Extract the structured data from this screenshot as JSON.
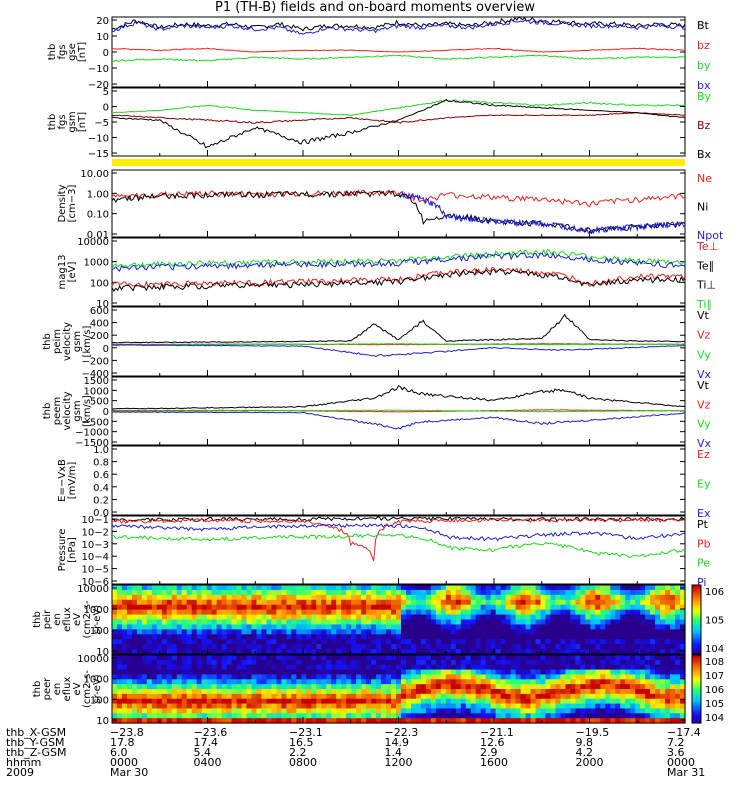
{
  "title": "P1 (TH-B) fields and on-board moments overview",
  "colors": {
    "black": "#000000",
    "red": "#e8231e",
    "green": "#1fd61f",
    "blue": "#1f1fd8",
    "yellow": "#ffee00",
    "brown": "#8a0000"
  },
  "chart_data": [
    {
      "type": "line",
      "ylabel": [
        "thb",
        "fgs",
        "gse",
        "[nT]"
      ],
      "ylim": [
        -20,
        20
      ],
      "yticks": [
        "20",
        "10",
        "0",
        "−10",
        "−20"
      ],
      "yscale": "linear",
      "legend": [
        {
          "label": "Bt",
          "color": "#000000"
        },
        {
          "label": "bz",
          "color": "#e8231e"
        },
        {
          "label": "by",
          "color": "#1fd61f"
        },
        {
          "label": "bx",
          "color": "#1f1fd8"
        }
      ],
      "series": [
        {
          "name": "Bt",
          "color": "#000000",
          "x": [
            0,
            1,
            2,
            3,
            4,
            5,
            6,
            7,
            8,
            9,
            10,
            11,
            12,
            13,
            14,
            15,
            16,
            17,
            18,
            19,
            20,
            21,
            22,
            23,
            24
          ],
          "y": [
            13,
            18,
            14,
            16,
            15,
            16,
            14,
            16,
            13,
            15,
            15,
            14,
            17,
            15,
            16,
            15,
            17,
            19,
            18,
            17,
            16,
            16,
            15,
            16,
            15
          ]
        },
        {
          "name": "bz",
          "color": "#e8231e",
          "x": [
            0,
            2,
            4,
            6,
            8,
            10,
            12,
            14,
            16,
            18,
            20,
            22,
            24
          ],
          "y": [
            2,
            1,
            2,
            0,
            1,
            1,
            0,
            1,
            2,
            0,
            1,
            2,
            1
          ]
        },
        {
          "name": "by",
          "color": "#1fd61f",
          "x": [
            0,
            2,
            4,
            6,
            8,
            10,
            12,
            14,
            16,
            18,
            20,
            22,
            24
          ],
          "y": [
            -5,
            -4,
            -5,
            -3,
            -4,
            -3,
            -2,
            -4,
            -3,
            -2,
            -4,
            -3,
            -3
          ]
        },
        {
          "name": "bx",
          "color": "#1f1fd8",
          "x": [
            0,
            1,
            2,
            3,
            4,
            5,
            6,
            7,
            8,
            9,
            10,
            11,
            12,
            13,
            14,
            15,
            16,
            17,
            18,
            19,
            20,
            21,
            22,
            23,
            24
          ],
          "y": [
            12,
            17,
            13,
            15,
            14,
            15,
            13,
            14,
            10,
            14,
            13,
            12,
            15,
            14,
            15,
            14,
            16,
            18,
            17,
            16,
            15,
            15,
            14,
            15,
            14
          ]
        }
      ]
    },
    {
      "type": "line",
      "ylabel": [
        "thb",
        "fgs",
        "gsm",
        "[nT]"
      ],
      "ylim": [
        -17.5,
        10
      ],
      "yticks": [
        "5",
        "0",
        "−5",
        "−10",
        "−15"
      ],
      "yscale": "linear",
      "legend": [
        {
          "label": "By",
          "color": "#1fd61f"
        },
        {
          "label": "Bz",
          "color": "#8a0000"
        },
        {
          "label": "Bx",
          "color": "#000000"
        }
      ],
      "series": [
        {
          "name": "By",
          "color": "#1fd61f",
          "x": [
            0,
            2,
            4,
            6,
            8,
            10,
            12,
            14,
            16,
            18,
            20,
            22,
            24
          ],
          "y": [
            0,
            1,
            3,
            1,
            0,
            -1,
            2,
            5,
            4,
            3,
            4,
            3,
            3
          ]
        },
        {
          "name": "Bz",
          "color": "#8a0000",
          "x": [
            0,
            2,
            4,
            6,
            8,
            10,
            12,
            14,
            16,
            18,
            20,
            22,
            24
          ],
          "y": [
            -1,
            -2,
            -3,
            -4,
            -3,
            -2,
            -4,
            -2,
            -1,
            -1,
            -1,
            0,
            -1
          ]
        },
        {
          "name": "Bx",
          "color": "#000000",
          "x": [
            0,
            2,
            4,
            6,
            8,
            10,
            12,
            14,
            16,
            18,
            20,
            22,
            24
          ],
          "y": [
            -2,
            -3,
            -14,
            -6,
            -12,
            -8,
            -3,
            5,
            3,
            2,
            1,
            0,
            -2
          ]
        }
      ]
    },
    {
      "type": "line",
      "ylabel": [
        "Density",
        "[cm−3]"
      ],
      "ylim": [
        0.01,
        10
      ],
      "yticks": [
        "10.00",
        "1.00",
        "0.10",
        "0.01"
      ],
      "yscale": "log",
      "legend": [
        {
          "label": "Ne",
          "color": "#e8231e"
        },
        {
          "label": "Ni",
          "color": "#000000"
        },
        {
          "label": "Npot",
          "color": "#1f1fd8"
        }
      ],
      "series": [
        {
          "name": "Ne",
          "color": "#e8231e",
          "x": [
            0,
            2,
            4,
            6,
            8,
            10,
            12,
            13,
            14,
            16,
            18,
            20,
            22,
            24
          ],
          "y": [
            0.6,
            0.8,
            0.9,
            0.85,
            0.9,
            0.95,
            1.0,
            0.4,
            0.8,
            0.6,
            0.5,
            0.3,
            0.5,
            0.7
          ]
        },
        {
          "name": "Ni",
          "color": "#000000",
          "x": [
            0,
            2,
            4,
            6,
            8,
            10,
            12,
            13,
            14,
            16,
            18,
            20,
            22,
            24
          ],
          "y": [
            0.5,
            0.7,
            0.8,
            0.8,
            0.85,
            0.9,
            0.9,
            0.05,
            0.1,
            0.05,
            0.04,
            0.02,
            0.03,
            0.04
          ]
        },
        {
          "name": "Npot",
          "color": "#1f1fd8",
          "x": [
            12,
            14,
            16,
            18,
            20,
            22,
            24
          ],
          "y": [
            0.9,
            0.08,
            0.05,
            0.04,
            0.02,
            0.03,
            0.04
          ]
        }
      ]
    },
    {
      "type": "line",
      "ylabel": [
        "mag13",
        "[eV]"
      ],
      "ylim": [
        10,
        10000
      ],
      "yticks": [
        "10000",
        "1000",
        "100",
        "10"
      ],
      "yscale": "log",
      "legend": [
        {
          "label": "Te⊥",
          "color": "#e8231e"
        },
        {
          "label": "Te∥",
          "color": "#000000"
        },
        {
          "label": "Ti⊥",
          "color": "#000000"
        },
        {
          "label": "Ti∥",
          "color": "#1fd61f"
        }
      ],
      "series": [
        {
          "name": "Ti∥",
          "color": "#1fd61f",
          "x": [
            0,
            4,
            8,
            12,
            14,
            16,
            18,
            20,
            22,
            24
          ],
          "y": [
            600,
            800,
            900,
            1000,
            1500,
            2000,
            2500,
            1500,
            1000,
            800
          ]
        },
        {
          "name": "Ti⊥",
          "color": "#1f1fd8",
          "x": [
            0,
            4,
            8,
            12,
            14,
            16,
            18,
            20,
            22,
            24
          ],
          "y": [
            450,
            600,
            700,
            800,
            1200,
            1600,
            1800,
            1200,
            800,
            600
          ]
        },
        {
          "name": "Te⊥",
          "color": "#e8231e",
          "x": [
            0,
            4,
            8,
            12,
            14,
            16,
            18,
            20,
            22,
            24
          ],
          "y": [
            90,
            100,
            120,
            150,
            300,
            400,
            300,
            100,
            200,
            200
          ]
        },
        {
          "name": "Te∥",
          "color": "#000000",
          "x": [
            0,
            4,
            8,
            12,
            14,
            16,
            18,
            20,
            22,
            24
          ],
          "y": [
            60,
            80,
            90,
            120,
            250,
            350,
            250,
            80,
            150,
            150
          ]
        }
      ]
    },
    {
      "type": "line",
      "ylabel": [
        "thb",
        "peim",
        "velocity",
        "gsm",
        "[km/s]"
      ],
      "ylim": [
        -550,
        650
      ],
      "yticks": [
        "600",
        "400",
        "200",
        "0",
        "−200",
        "−400"
      ],
      "yscale": "linear",
      "legend": [
        {
          "label": "Vt",
          "color": "#000000"
        },
        {
          "label": "Vz",
          "color": "#e8231e"
        },
        {
          "label": "Vy",
          "color": "#1fd61f"
        },
        {
          "label": "Vx",
          "color": "#1f1fd8"
        }
      ],
      "series": [
        {
          "name": "Vt",
          "color": "#000000",
          "x": [
            0,
            4,
            8,
            10,
            11,
            12,
            13,
            14,
            16,
            18,
            19,
            20,
            22,
            24
          ],
          "y": [
            30,
            40,
            50,
            60,
            350,
            80,
            400,
            60,
            80,
            100,
            500,
            80,
            60,
            50
          ]
        },
        {
          "name": "Vz",
          "color": "#e8231e",
          "x": [
            0,
            6,
            12,
            18,
            24
          ],
          "y": [
            0,
            5,
            -5,
            10,
            0
          ]
        },
        {
          "name": "Vy",
          "color": "#1fd61f",
          "x": [
            0,
            6,
            12,
            18,
            24
          ],
          "y": [
            -10,
            0,
            10,
            -5,
            5
          ]
        },
        {
          "name": "Vx",
          "color": "#1f1fd8",
          "x": [
            0,
            4,
            8,
            11,
            13,
            16,
            19,
            24
          ],
          "y": [
            -10,
            -20,
            -30,
            -200,
            -150,
            -60,
            -100,
            -20
          ]
        }
      ]
    },
    {
      "type": "line",
      "ylabel": [
        "thb",
        "peem",
        "velocity",
        "gsm",
        "[km/s]"
      ],
      "ylim": [
        -1600,
        1600
      ],
      "yticks": [
        "1500",
        "1000",
        "500",
        "0",
        "−500",
        "−1000",
        "−1500"
      ],
      "yscale": "linear",
      "legend": [
        {
          "label": "Vt",
          "color": "#000000"
        },
        {
          "label": "Vz",
          "color": "#e8231e"
        },
        {
          "label": "Vy",
          "color": "#1fd61f"
        },
        {
          "label": "Vx",
          "color": "#1f1fd8"
        }
      ],
      "series": [
        {
          "name": "Vt",
          "color": "#000000",
          "x": [
            0,
            4,
            8,
            11,
            12,
            13,
            16,
            18,
            19,
            20,
            22,
            24
          ],
          "y": [
            100,
            150,
            200,
            600,
            1100,
            800,
            500,
            900,
            1000,
            600,
            400,
            200
          ]
        },
        {
          "name": "Vz",
          "color": "#e8231e",
          "x": [
            0,
            6,
            12,
            18,
            24
          ],
          "y": [
            20,
            30,
            -40,
            50,
            10
          ]
        },
        {
          "name": "Vy",
          "color": "#1fd61f",
          "x": [
            0,
            6,
            12,
            18,
            24
          ],
          "y": [
            -20,
            10,
            40,
            -30,
            20
          ]
        },
        {
          "name": "Vx",
          "color": "#1f1fd8",
          "x": [
            0,
            4,
            8,
            12,
            13,
            16,
            18,
            24
          ],
          "y": [
            -50,
            -60,
            -80,
            -800,
            -500,
            -300,
            -600,
            -100
          ]
        }
      ]
    },
    {
      "type": "line",
      "ylabel": [
        "E=−VxB",
        "[mV/m]"
      ],
      "ylim": [
        0,
        1
      ],
      "yticks": [
        "1.0",
        "0.8",
        "0.6",
        "0.4",
        "0.2",
        "0.0"
      ],
      "yscale": "linear",
      "legend": [
        {
          "label": "Ez",
          "color": "#e8231e"
        },
        {
          "label": "Ey",
          "color": "#1fd61f"
        },
        {
          "label": "Ex",
          "color": "#1f1fd8"
        }
      ],
      "series": []
    },
    {
      "type": "line",
      "ylabel": [
        "Pressure",
        "[nPa]"
      ],
      "ylim": [
        1e-06,
        0.1
      ],
      "yticks": [
        "10−1",
        "10−2",
        "10−3",
        "10−4",
        "10−5",
        "10−6"
      ],
      "yscale": "log",
      "legend": [
        {
          "label": "Pt",
          "color": "#000000"
        },
        {
          "label": "Pb",
          "color": "#e8231e"
        },
        {
          "label": "Pe",
          "color": "#1fd61f"
        },
        {
          "label": "Pi",
          "color": "#1f1fd8"
        }
      ],
      "series": [
        {
          "name": "Pt",
          "color": "#000000",
          "x": [
            0,
            4,
            8,
            12,
            16,
            20,
            24
          ],
          "y": [
            0.05,
            0.06,
            0.06,
            0.07,
            0.06,
            0.06,
            0.06
          ]
        },
        {
          "name": "Pb",
          "color": "#e8231e",
          "x": [
            0,
            4,
            8,
            10,
            11,
            12,
            14,
            16,
            20,
            24
          ],
          "y": [
            0.04,
            0.05,
            0.04,
            0.001,
            1e-05,
            0.04,
            0.05,
            0.05,
            0.05,
            0.05
          ]
        },
        {
          "name": "Pi",
          "color": "#1f1fd8",
          "x": [
            0,
            4,
            8,
            12,
            14,
            16,
            18,
            20,
            22,
            24
          ],
          "y": [
            0.02,
            0.01,
            0.02,
            0.02,
            0.003,
            0.002,
            0.004,
            0.006,
            0.002,
            0.005
          ]
        },
        {
          "name": "Pe",
          "color": "#1fd61f",
          "x": [
            0,
            4,
            8,
            12,
            14,
            16,
            18,
            20,
            22,
            24
          ],
          "y": [
            0.003,
            0.002,
            0.003,
            0.004,
            0.0005,
            0.0003,
            0.001,
            0.0002,
            0.0001,
            0.0003
          ]
        }
      ]
    },
    {
      "type": "heatmap",
      "ylabel": [
        "thb",
        "peir",
        "en",
        "eflux",
        "eV",
        "(cm2-s-",
        "sr-eV)"
      ],
      "yticks": [
        "10000",
        "1000",
        "100",
        "10"
      ],
      "colorbar_ticks": [
        "106",
        "105",
        "104"
      ]
    },
    {
      "type": "heatmap",
      "ylabel": [
        "thb",
        "peer",
        "en",
        "eflux",
        "eV",
        "(cm2-s-",
        "sr-eV)"
      ],
      "yticks": [
        "10000",
        "1000",
        "100",
        "10"
      ],
      "colorbar_ticks": [
        "108",
        "107",
        "106",
        "105",
        "104"
      ]
    }
  ],
  "orbit_table": {
    "row_labels": [
      "thb_X-GSM",
      "thb_Y-GSM",
      "thb_Z-GSM",
      "hhmm",
      "2009"
    ],
    "columns": [
      [
        "−23.8",
        "17.8",
        "6.0",
        "0000",
        "Mar 30"
      ],
      [
        "−23.6",
        "17.4",
        "5.4",
        "0400",
        ""
      ],
      [
        "−23.1",
        "16.5",
        "2.2",
        "0800",
        ""
      ],
      [
        "−22.3",
        "14.9",
        "1.4",
        "1200",
        ""
      ],
      [
        "−21.1",
        "12.6",
        "2.9",
        "1600",
        ""
      ],
      [
        "−19.5",
        "9.8",
        "4.2",
        "2000",
        ""
      ],
      [
        "−17.4",
        "7.2",
        "3.6",
        "0000",
        "Mar 31"
      ]
    ]
  }
}
